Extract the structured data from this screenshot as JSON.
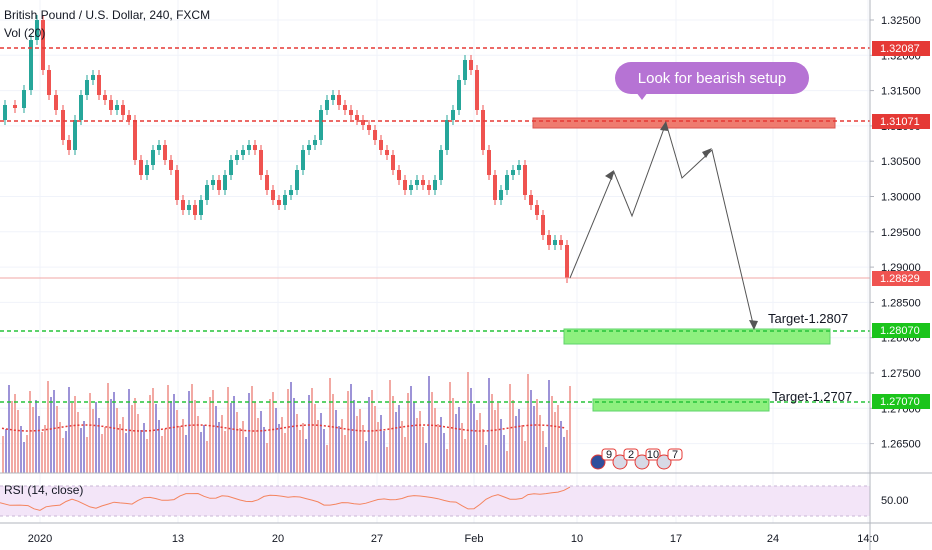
{
  "header": {
    "title": "British Pound / U.S. Dollar, 240, FXCM",
    "volume_label": "Vol (20)"
  },
  "rsi_label": "RSI (14, close)",
  "annotation": "Look for bearish setup",
  "price_axis": {
    "ticks": [
      "1.32500",
      "1.32000",
      "1.31500",
      "1.31000",
      "1.30500",
      "1.30000",
      "1.29500",
      "1.29000",
      "1.28500",
      "1.28000",
      "1.27500",
      "1.27000",
      "1.26500"
    ],
    "tag_resistance_1": "1.32087",
    "tag_resistance_2": "1.31071",
    "tag_current": "1.28829",
    "tag_target_1": "1.28070",
    "tag_target_2": "1.27070"
  },
  "rsi_axis": {
    "tick": "50.00"
  },
  "time_axis": {
    "labels": [
      "2020",
      "13",
      "20",
      "27",
      "Feb",
      "10",
      "17",
      "24",
      "14:0"
    ]
  },
  "targets": {
    "target_1": "Target-1.2807",
    "target_2": "Target-1.2707"
  },
  "event_icons": [
    {
      "flag": "GB",
      "count": "9"
    },
    {
      "flag": "US",
      "count": "2"
    },
    {
      "flag": "US",
      "count": "10"
    },
    {
      "flag": "US",
      "count": "7"
    }
  ],
  "colors": {
    "bull": "#26a69a",
    "bear": "#ef5350",
    "resistance_line": "#e53935",
    "target_line": "#26c33a",
    "target_zone": "#8ef07f",
    "resistance_zone": "#ef7b6f",
    "bubble": "#b673d4",
    "rsi_bg": "#f3e5f8"
  }
}
